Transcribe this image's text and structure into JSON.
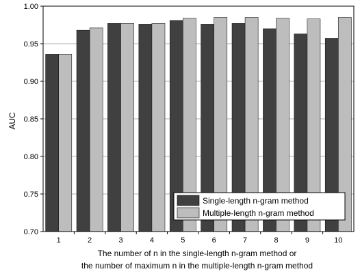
{
  "chart_data": {
    "type": "bar",
    "categories": [
      "1",
      "2",
      "3",
      "4",
      "5",
      "6",
      "7",
      "8",
      "9",
      "10"
    ],
    "series": [
      {
        "name": "Single-length n-gram method",
        "color": "#404040",
        "values": [
          0.936,
          0.968,
          0.977,
          0.976,
          0.981,
          0.976,
          0.977,
          0.97,
          0.963,
          0.957
        ]
      },
      {
        "name": "Multiple-length n-gram method",
        "color": "#bdbdbd",
        "values": [
          0.936,
          0.971,
          0.977,
          0.977,
          0.984,
          0.985,
          0.985,
          0.984,
          0.983,
          0.985
        ]
      }
    ],
    "ylabel": "AUC",
    "xlabel_line1": "The number of n in the single-length n-gram method or",
    "xlabel_line2": "the number of maximum n in the multiple-length n-gram method",
    "ylim": [
      0.7,
      1.0
    ],
    "yticks": [
      "0.70",
      "0.75",
      "0.80",
      "0.85",
      "0.90",
      "0.95",
      "1.00"
    ],
    "grid": "horizontal",
    "legend_position": "bottom-right"
  }
}
